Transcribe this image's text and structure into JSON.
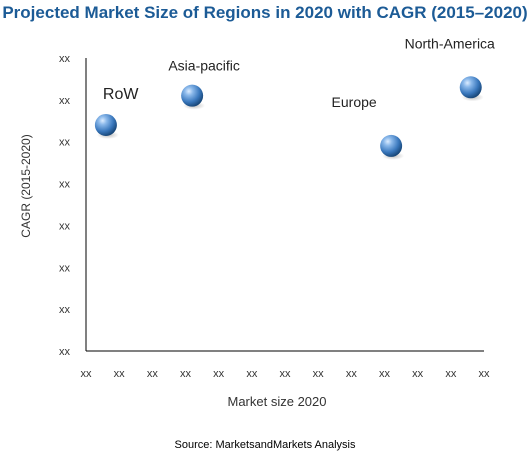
{
  "title": "Projected Market Size of Regions in 2020 with CAGR (2015–2020)",
  "source": "Source: MarketsandMarkets Analysis",
  "colors": {
    "title": "#1c5b96",
    "bubble_light": "#9cc3ef",
    "bubble_mid": "#3a78bd",
    "bubble_dark": "#13406f",
    "axis": "#000000",
    "gridline": "#e6e6e6",
    "text": "#333333"
  },
  "chart_data": {
    "type": "scatter",
    "xlabel": "Market size 2020",
    "ylabel": "CAGR (2015-2020)",
    "x_tick_labels": [
      "xx",
      "xx",
      "xx",
      "xx",
      "xx",
      "xx",
      "xx",
      "xx",
      "xx",
      "xx",
      "xx",
      "xx",
      "xx"
    ],
    "y_tick_labels": [
      "xx",
      "xx",
      "xx",
      "xx",
      "xx",
      "xx",
      "xx",
      "xx"
    ],
    "xlim": [
      0,
      12
    ],
    "ylim": [
      0,
      7
    ],
    "grid": false,
    "points": [
      {
        "label": "RoW",
        "x": 0.6,
        "y": 5.4
      },
      {
        "label": "Asia-pacific",
        "x": 3.2,
        "y": 6.1
      },
      {
        "label": "Europe",
        "x": 9.2,
        "y": 4.9
      },
      {
        "label": "North-America",
        "x": 11.6,
        "y": 6.3
      }
    ]
  }
}
